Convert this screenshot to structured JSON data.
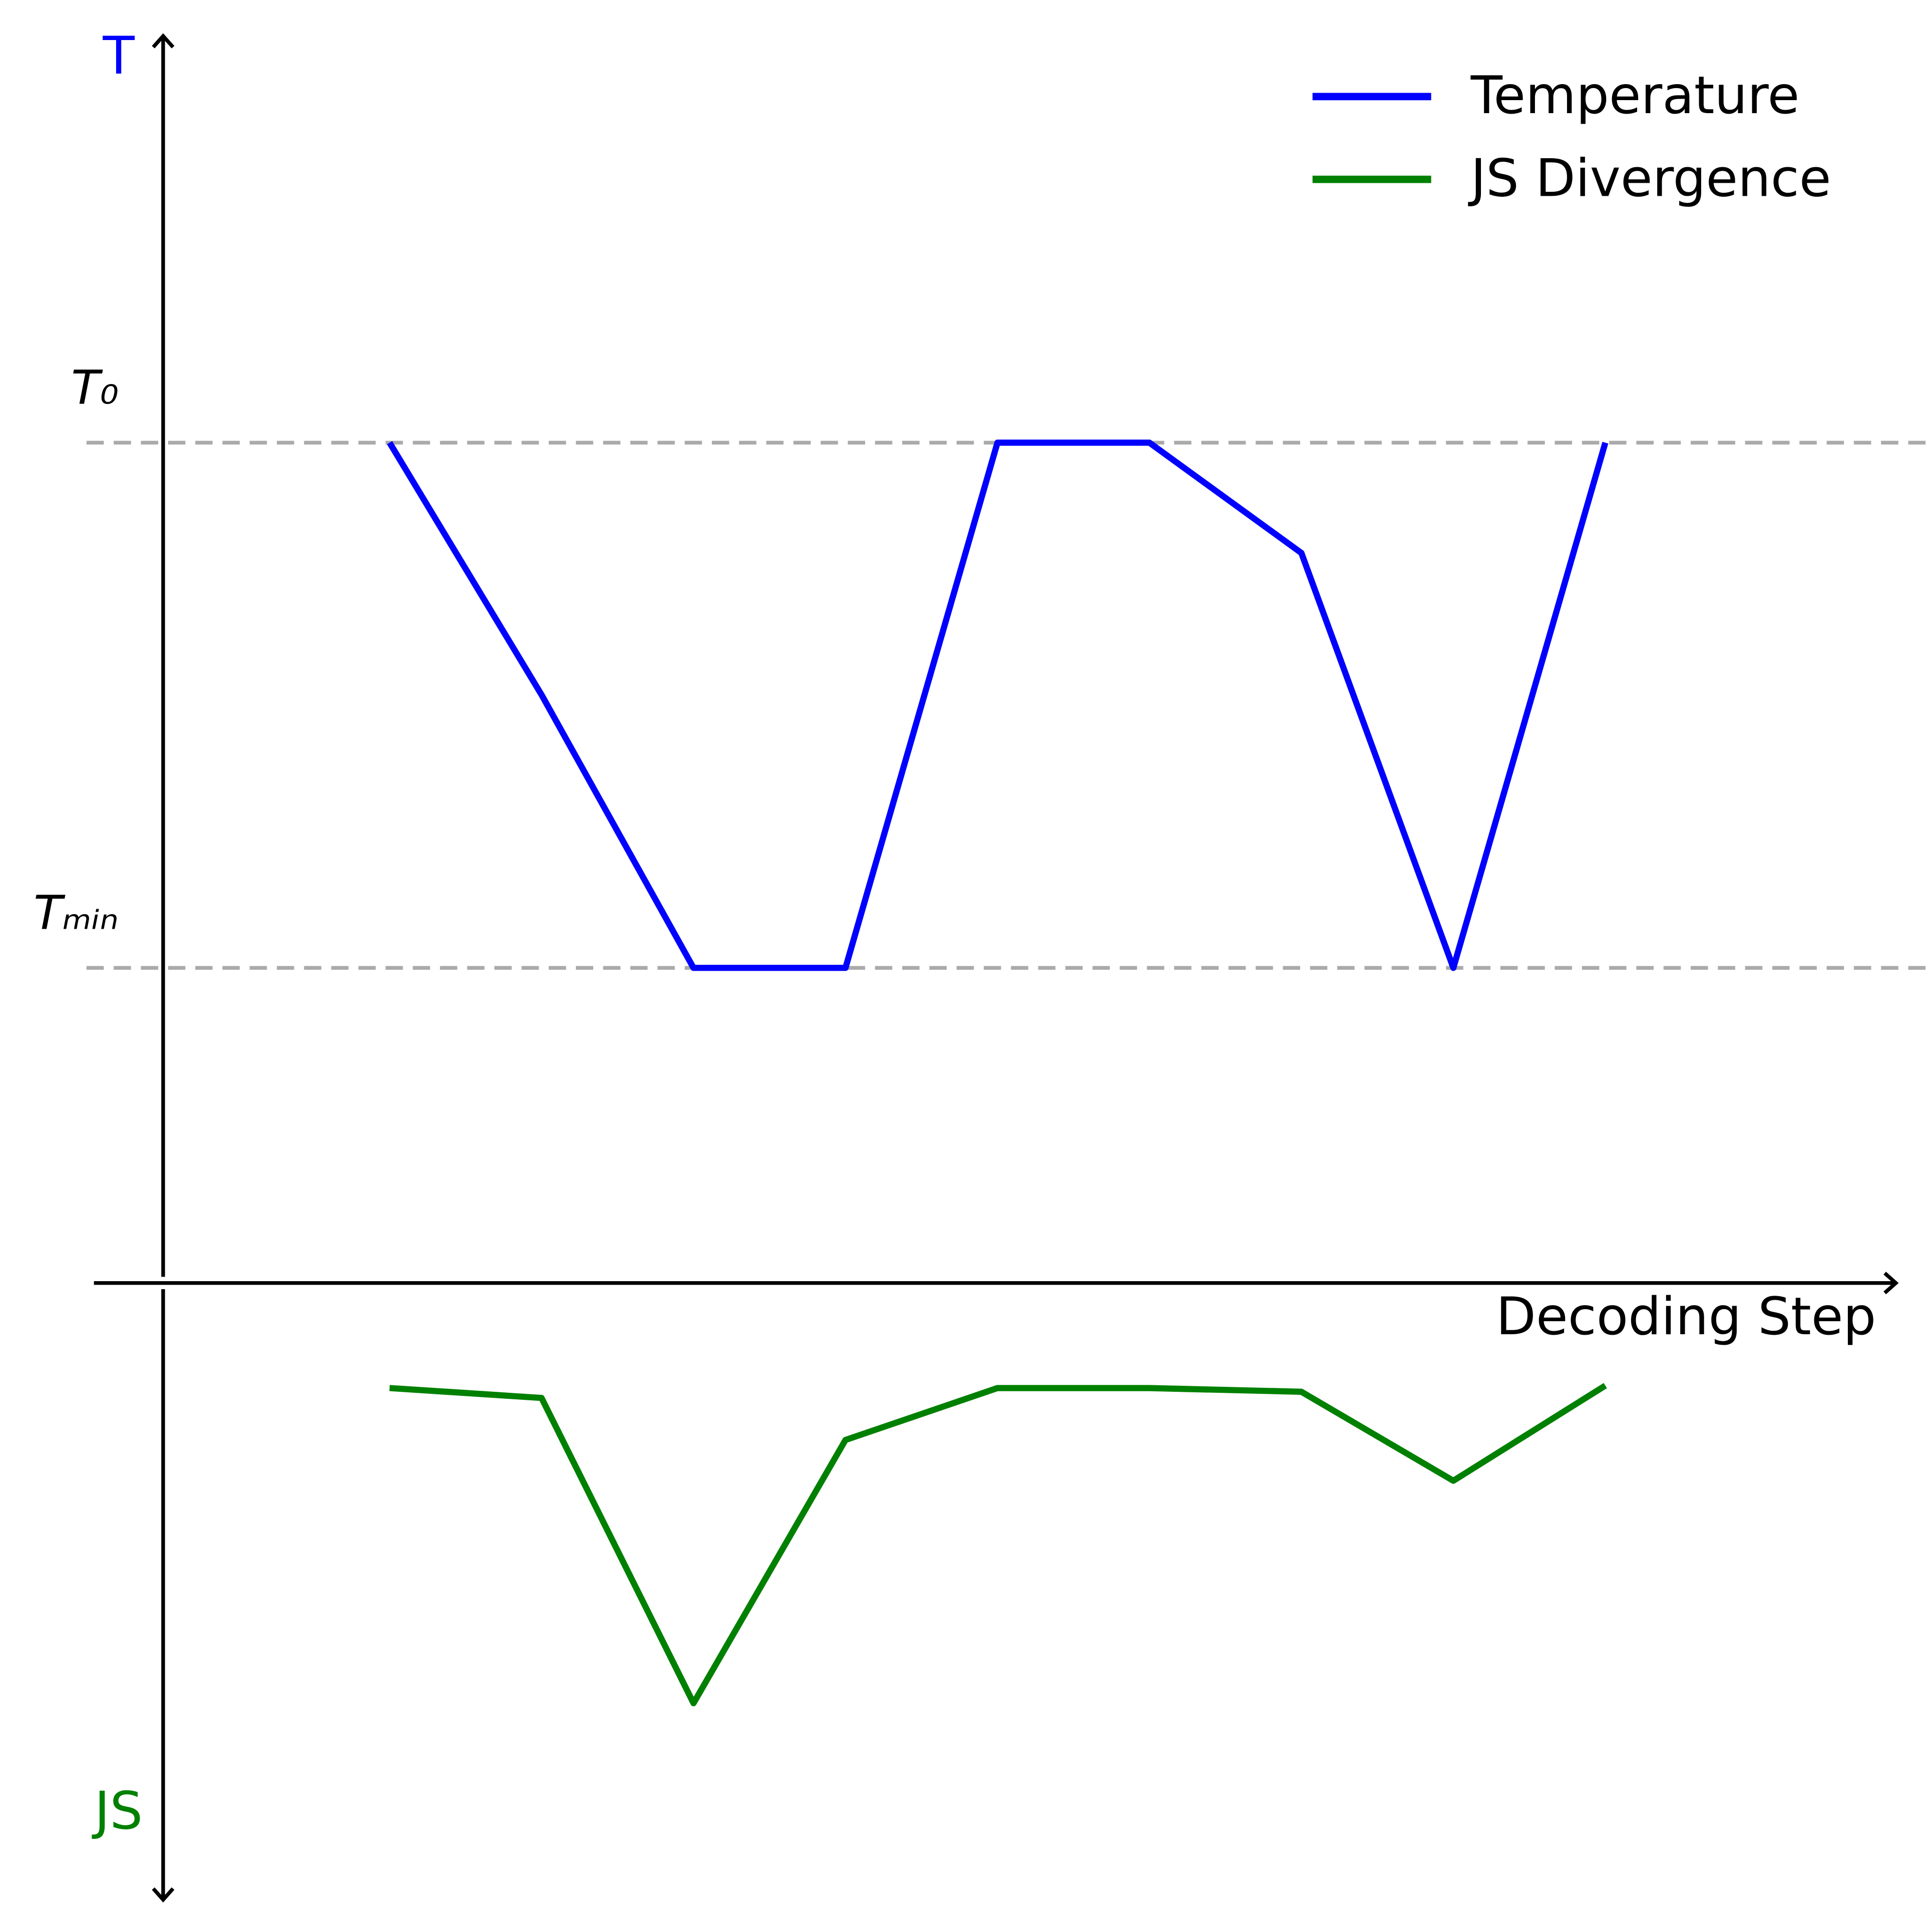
{
  "chart_data": {
    "type": "line",
    "xlabel": "Decoding Step",
    "ylabel": "T",
    "y2label": "JS",
    "x": [
      1,
      2,
      3,
      4,
      5,
      6,
      7,
      8,
      9
    ],
    "xlim": [
      -0.49,
      10.92
    ],
    "ylim": [
      -0.6,
      1.772
    ],
    "yticks": [
      {
        "value": 1,
        "label": "T₀"
      },
      {
        "value": 0,
        "label": "Tₘᵢₙ"
      }
    ],
    "y2lim": [
      0,
      5
    ],
    "y2_inverted": true,
    "grid": true,
    "legend": "upper right",
    "series": [
      {
        "name": "Temperature",
        "color": "#0000ff",
        "values": [
          1.0,
          0.52,
          0.0,
          0.0,
          1.0,
          1.0,
          0.79,
          0.0,
          1.0
        ]
      },
      {
        "name": "JS Divergence",
        "color": "#008000",
        "axis": "y2",
        "values": [
          0.85,
          0.93,
          3.4,
          1.27,
          0.85,
          0.85,
          0.88,
          1.6,
          0.83
        ]
      }
    ]
  }
}
